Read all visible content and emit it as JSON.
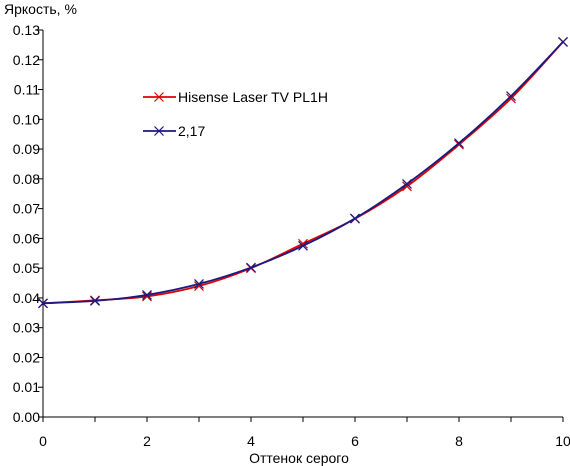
{
  "chart_data": {
    "type": "line",
    "title": "",
    "ylabel": "Яркость, %",
    "xlabel": "Оттенок серого",
    "xlim": [
      0,
      10
    ],
    "ylim": [
      0,
      0.13
    ],
    "x_ticks": [
      "0",
      "2",
      "4",
      "6",
      "8",
      "10"
    ],
    "y_ticks": [
      "0.00",
      "0.01",
      "0.02",
      "0.03",
      "0.04",
      "0.05",
      "0.06",
      "0.07",
      "0.08",
      "0.09",
      "0.10",
      "0.11",
      "0.12",
      "0.13"
    ],
    "grid": false,
    "legend_position": "top-left",
    "series": [
      {
        "name": "Hisense Laser TV PL1H",
        "color": "#e00000",
        "marker": "x",
        "x": [
          0,
          1,
          2,
          3,
          4,
          5,
          6,
          7,
          8,
          9,
          10
        ],
        "values": [
          0.0382,
          0.0392,
          0.0405,
          0.044,
          0.05,
          0.0582,
          0.0666,
          0.0775,
          0.0915,
          0.107,
          0.126
        ]
      },
      {
        "name": "2,17",
        "color": "#1a1a80",
        "marker": "x",
        "x": [
          0,
          1,
          2,
          3,
          4,
          5,
          6,
          7,
          8,
          9,
          10
        ],
        "values": [
          0.0382,
          0.039,
          0.041,
          0.0447,
          0.0502,
          0.0575,
          0.0667,
          0.0783,
          0.092,
          0.1078,
          0.126
        ]
      }
    ]
  }
}
